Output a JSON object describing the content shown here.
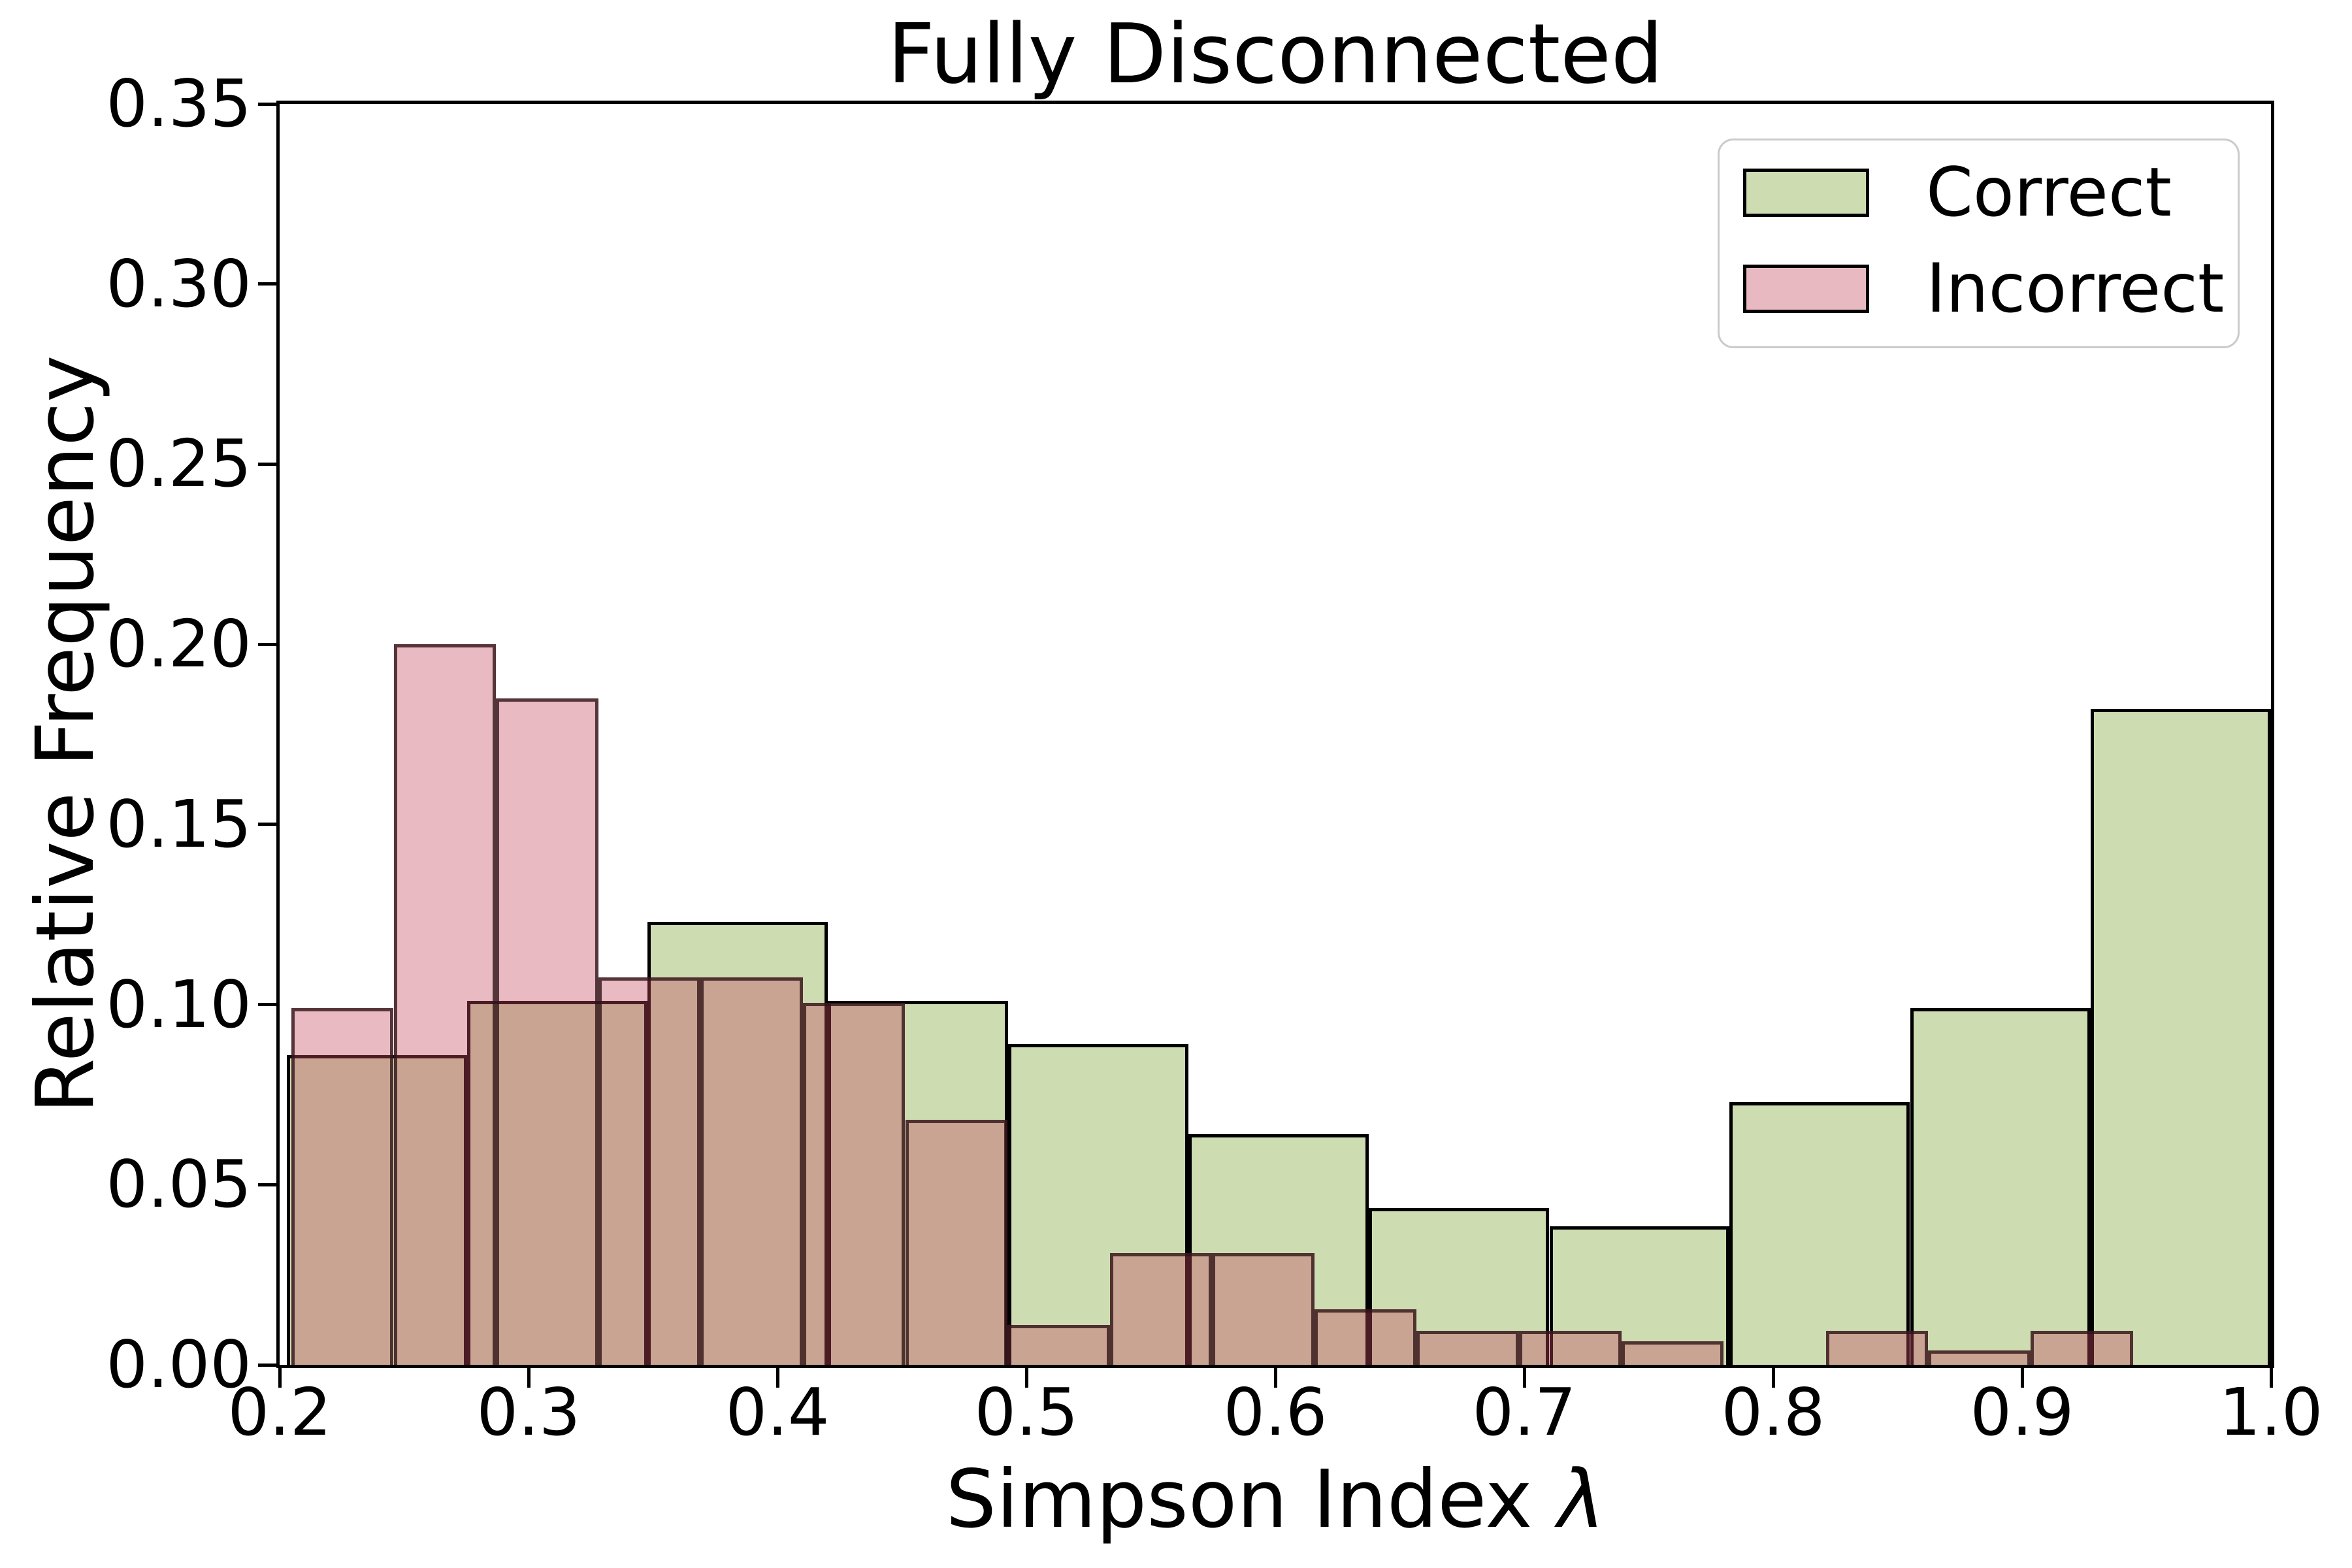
{
  "title": "Fully Disconnected",
  "axes": {
    "xlabel_prefix": "Simpson Index ",
    "xlabel_symbol": "λ",
    "ylabel": "Relative Frequency",
    "x_tick_labels": [
      "0.2",
      "0.3",
      "0.4",
      "0.5",
      "0.6",
      "0.7",
      "0.8",
      "0.9",
      "1.0"
    ],
    "x_tick_values": [
      0.2,
      0.3,
      0.4,
      0.5,
      0.6,
      0.7,
      0.8,
      0.9,
      1.0
    ],
    "y_tick_labels": [
      "0.00",
      "0.05",
      "0.10",
      "0.15",
      "0.20",
      "0.25",
      "0.30",
      "0.35"
    ],
    "y_tick_values": [
      0.0,
      0.05,
      0.1,
      0.15,
      0.2,
      0.25,
      0.3,
      0.35
    ]
  },
  "legend": {
    "items": [
      {
        "label": "Correct",
        "color": "#cedcb2"
      },
      {
        "label": "Incorrect",
        "color": "#e8b9c1"
      }
    ]
  },
  "chart_data": {
    "type": "histogram",
    "title": "Fully Disconnected",
    "xlabel": "Simpson Index λ",
    "ylabel": "Relative Frequency",
    "xlim": [
      0.2,
      1.0
    ],
    "ylim": [
      0.0,
      0.35
    ],
    "grid": false,
    "legend_position": "upper right",
    "series": [
      {
        "name": "Correct",
        "fill_color": "#cedcb2",
        "edge_color": "#000000",
        "bin_edges": [
          0.2029,
          0.2754,
          0.3478,
          0.4203,
          0.4927,
          0.5652,
          0.6376,
          0.7101,
          0.7825,
          0.855,
          0.9275,
          0.9999
        ],
        "heights": [
          0.086,
          0.101,
          0.123,
          0.101,
          0.089,
          0.064,
          0.0435,
          0.0385,
          0.073,
          0.099,
          0.182
        ]
      },
      {
        "name": "Incorrect",
        "fill_color": "rgba(198,73,94,0.38)",
        "edge_color": "rgba(48,20,24,0.80)",
        "bin_edges": [
          0.2047,
          0.2458,
          0.2869,
          0.328,
          0.3691,
          0.4102,
          0.4513,
          0.4924,
          0.5335,
          0.5746,
          0.6157,
          0.6568,
          0.6979,
          0.739,
          0.7801,
          0.8212,
          0.8623,
          0.9034,
          0.9445
        ],
        "heights": [
          0.099,
          0.2,
          0.185,
          0.1075,
          0.1075,
          0.1005,
          0.068,
          0.011,
          0.031,
          0.031,
          0.0155,
          0.0095,
          0.0095,
          0.0065,
          0.0,
          0.0095,
          0.004,
          0.0095
        ]
      }
    ]
  }
}
